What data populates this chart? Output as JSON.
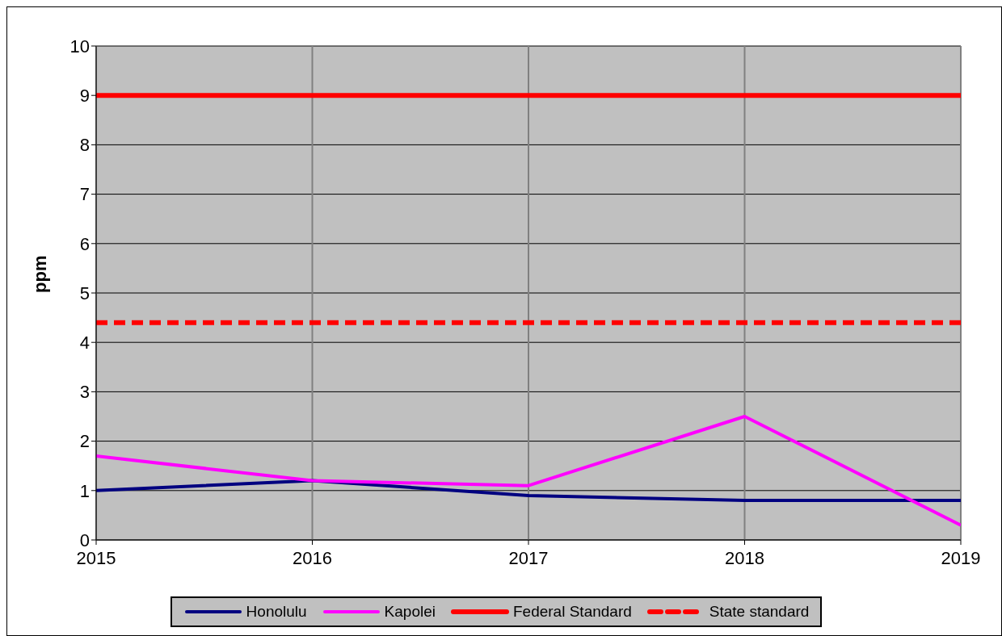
{
  "chart_data": {
    "type": "line",
    "ylabel": "ppm",
    "x": [
      2015,
      2016,
      2017,
      2018,
      2019
    ],
    "xlim": [
      2015,
      2019
    ],
    "xticks": [
      2015,
      2016,
      2017,
      2018,
      2019
    ],
    "ylim": [
      0,
      10
    ],
    "yticks": [
      0,
      1,
      2,
      3,
      4,
      5,
      6,
      7,
      8,
      9,
      10
    ],
    "grid": true,
    "legend": "bottom",
    "marker": "none",
    "series": [
      {
        "name": "Honolulu",
        "color": "#000080",
        "values": [
          1.0,
          1.2,
          0.9,
          0.8,
          0.8
        ]
      },
      {
        "name": "Kapolei",
        "color": "#ff00ff",
        "values": [
          1.7,
          1.2,
          1.1,
          2.5,
          0.3
        ]
      },
      {
        "name": "Federal Standard",
        "color": "#ff0000",
        "values": [
          9,
          9,
          9,
          9,
          9
        ]
      },
      {
        "name": "State standard",
        "color": "#ff0000",
        "line_style": "dashed",
        "values": [
          4.4,
          4.4,
          4.4,
          4.4,
          4.4
        ]
      }
    ]
  }
}
